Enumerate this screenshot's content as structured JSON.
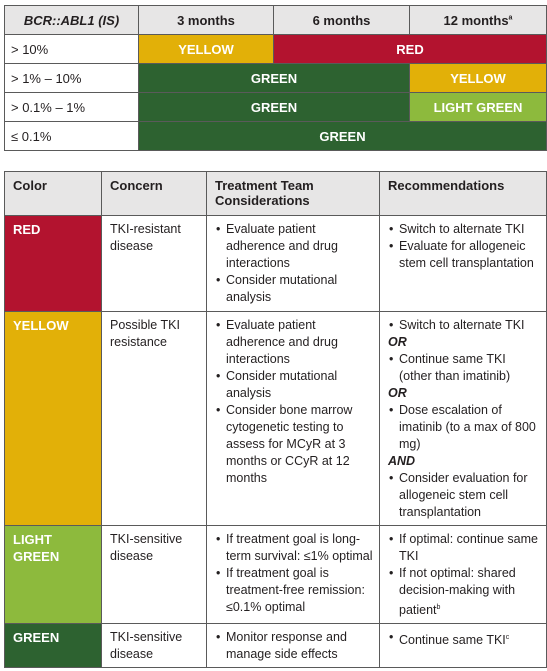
{
  "colors": {
    "red": "#b3132f",
    "yellow": "#e2b008",
    "green": "#2d6230",
    "light_green": "#8dba3d",
    "header_bg": "#e7e6e6"
  },
  "response_table": {
    "headers": {
      "label": "BCR::ABL1 (IS)",
      "m3": "3 months",
      "m6": "6 months",
      "m12": "12 months",
      "m12_sup": "a"
    },
    "rows": [
      {
        "label": "> 10%",
        "bands": [
          "YELLOW",
          "RED"
        ]
      },
      {
        "label": "> 1% – 10%",
        "bands": [
          "GREEN",
          "YELLOW"
        ]
      },
      {
        "label": "> 0.1% – 1%",
        "bands": [
          "GREEN",
          "LIGHT GREEN"
        ]
      },
      {
        "label": "≤ 0.1%",
        "bands": [
          "GREEN"
        ]
      }
    ]
  },
  "recommendations_table": {
    "headers": {
      "color": "Color",
      "concern": "Concern",
      "considerations": "Treatment Team Considerations",
      "recommendations": "Recommendations"
    },
    "rows": [
      {
        "color": "RED",
        "concern": "TKI-resistant disease",
        "considerations": [
          "Evaluate patient adherence and drug interactions",
          "Consider mutational analysis"
        ],
        "recommendations": [
          "Switch to alternate TKI",
          "Evaluate for allogeneic stem cell transplantation"
        ]
      },
      {
        "color": "YELLOW",
        "concern": "Possible TKI resistance",
        "considerations": [
          "Evaluate patient adherence and drug interactions",
          "Consider mutational analysis",
          "Consider bone marrow cytogenetic testing to assess for MCyR at 3 months or CCyR at 12 months"
        ],
        "recommendations": [
          "Switch to alternate TKI",
          "OR",
          "Continue same TKI (other than imatinib)",
          "OR",
          "Dose escalation of imatinib (to a max of 800 mg)",
          "AND",
          "Consider evaluation for allogeneic stem cell transplantation"
        ]
      },
      {
        "color": "LIGHT GREEN",
        "concern": "TKI-sensitive disease",
        "considerations": [
          "If treatment goal is long-term survival: ≤1% optimal",
          "If treatment goal is treatment-free remission: ≤0.1% optimal"
        ],
        "recommendations": [
          "If optimal: continue same TKI",
          "If not optimal: shared decision-making with patient"
        ],
        "rec_sup": "b"
      },
      {
        "color": "GREEN",
        "concern": "TKI-sensitive disease",
        "considerations": [
          "Monitor response and manage side effects"
        ],
        "recommendations": [
          "Continue same TKI"
        ],
        "rec_sup": "c"
      }
    ]
  }
}
